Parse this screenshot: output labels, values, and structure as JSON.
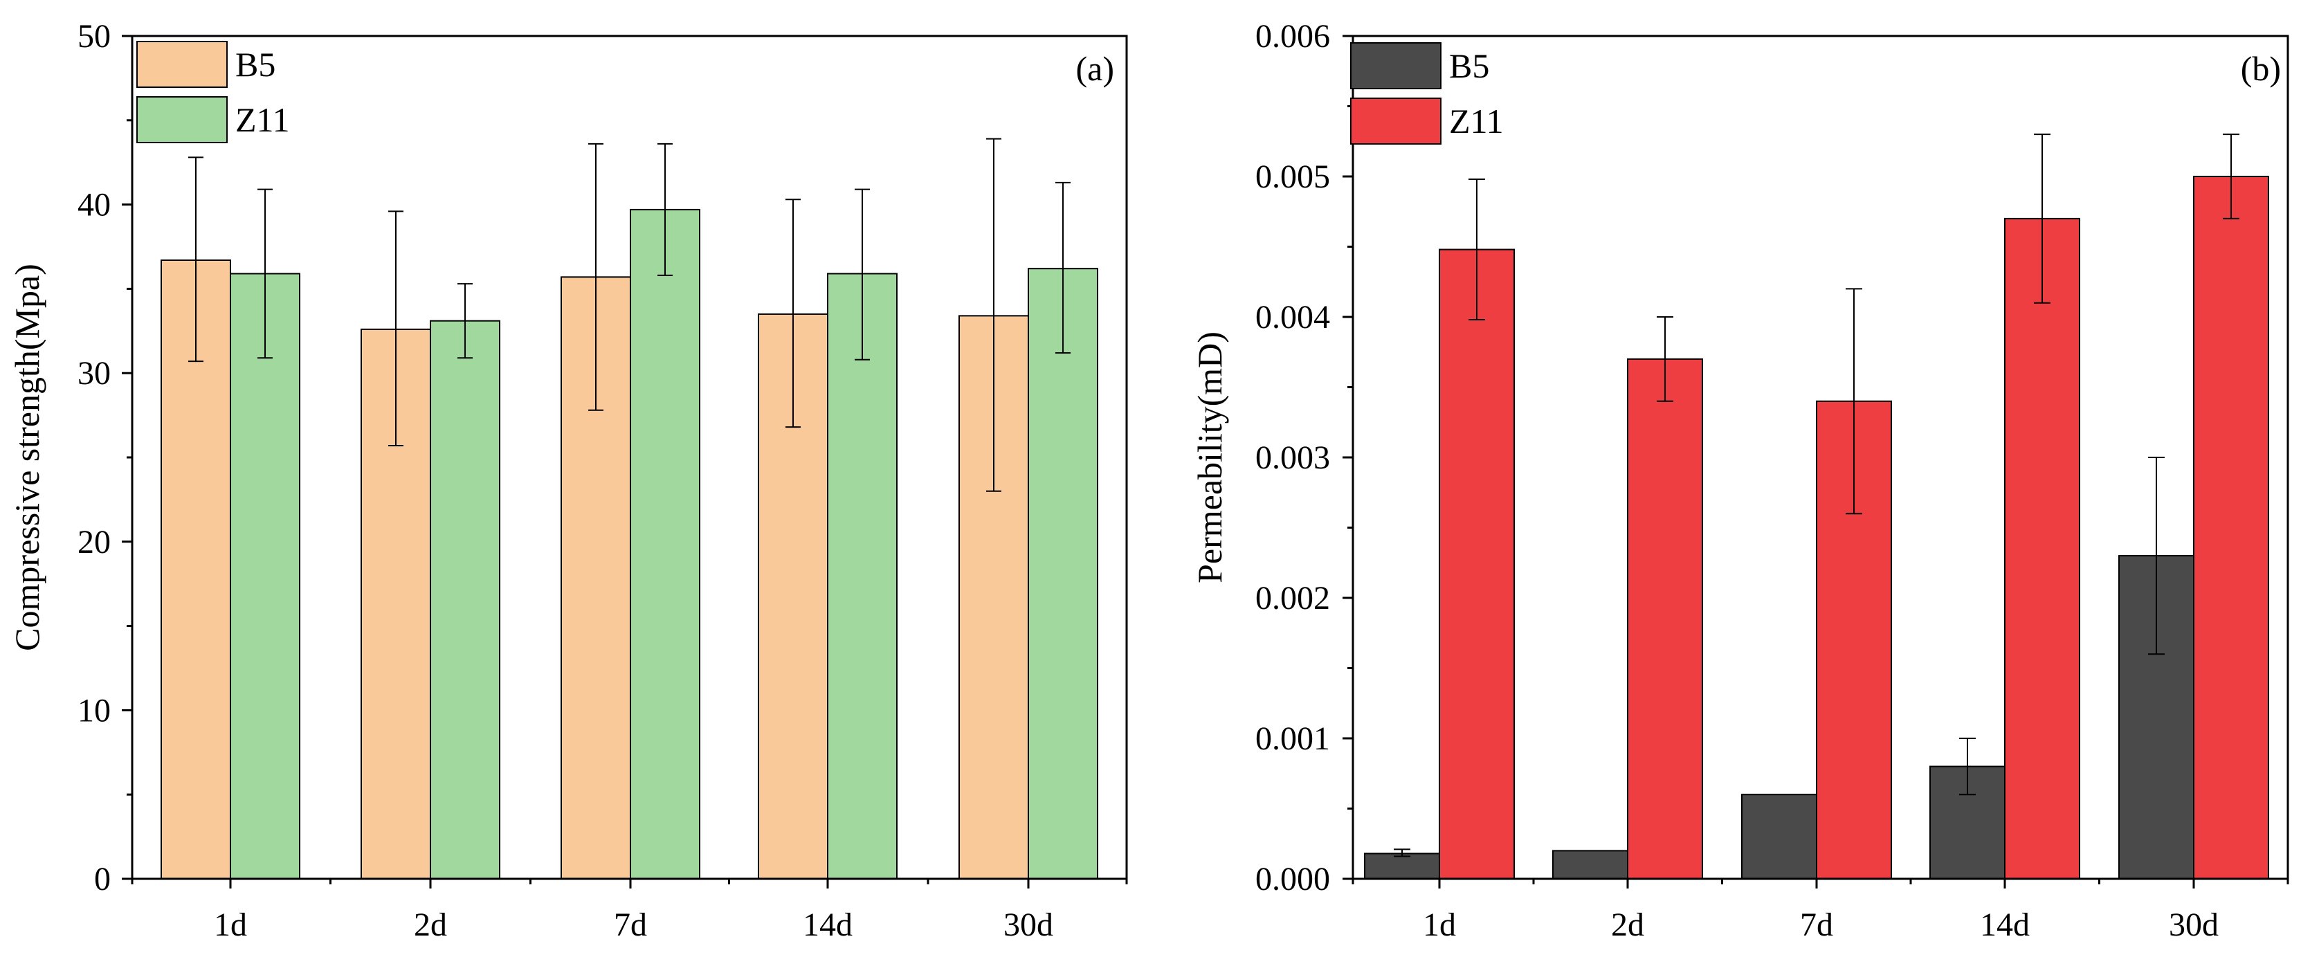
{
  "figure": {
    "panels": [
      "(a)",
      "(b)"
    ]
  },
  "chart_data": [
    {
      "type": "bar",
      "panel_label": "(a)",
      "title": "",
      "xlabel": "",
      "ylabel": "Compressive strength(Mpa)",
      "categories": [
        "1d",
        "2d",
        "7d",
        "14d",
        "30d"
      ],
      "ylim": [
        0,
        50
      ],
      "yticks": [
        "0",
        "10",
        "20",
        "30",
        "40",
        "50"
      ],
      "grid": false,
      "legend": "top-left",
      "series": [
        {
          "name": "B5",
          "color": "#F9C99A",
          "values": [
            36.7,
            32.6,
            35.7,
            33.5,
            33.4
          ],
          "err_low": [
            30.7,
            25.7,
            27.8,
            26.8,
            23.0
          ],
          "err_high": [
            42.8,
            39.6,
            43.6,
            40.3,
            43.9
          ]
        },
        {
          "name": "Z11",
          "color": "#A0D89E",
          "values": [
            35.9,
            33.1,
            39.7,
            35.9,
            36.2
          ],
          "err_low": [
            30.9,
            30.9,
            35.8,
            30.8,
            31.2
          ],
          "err_high": [
            40.9,
            35.3,
            43.6,
            40.9,
            41.3
          ]
        }
      ]
    },
    {
      "type": "bar",
      "panel_label": "(b)",
      "title": "",
      "xlabel": "",
      "ylabel": "Permeability(mD)",
      "categories": [
        "1d",
        "2d",
        "7d",
        "14d",
        "30d"
      ],
      "ylim": [
        0,
        0.006
      ],
      "yticks": [
        "0.000",
        "0.001",
        "0.002",
        "0.003",
        "0.004",
        "0.005",
        "0.006"
      ],
      "grid": false,
      "legend": "top-left",
      "series": [
        {
          "name": "B5",
          "color": "#4A4A4A",
          "values": [
            0.00018,
            0.0002,
            0.0006,
            0.0008,
            0.0023
          ],
          "err_low": [
            0.00016,
            null,
            null,
            0.0006,
            0.0016
          ],
          "err_high": [
            0.00021,
            null,
            null,
            0.001,
            0.003
          ]
        },
        {
          "name": "Z11",
          "color": "#EF3E42",
          "values": [
            0.00448,
            0.0037,
            0.0034,
            0.0047,
            0.005
          ],
          "err_low": [
            0.00398,
            0.0034,
            0.0026,
            0.0041,
            0.0047
          ],
          "err_high": [
            0.00498,
            0.004,
            0.0042,
            0.0053,
            0.0053
          ]
        }
      ]
    }
  ]
}
